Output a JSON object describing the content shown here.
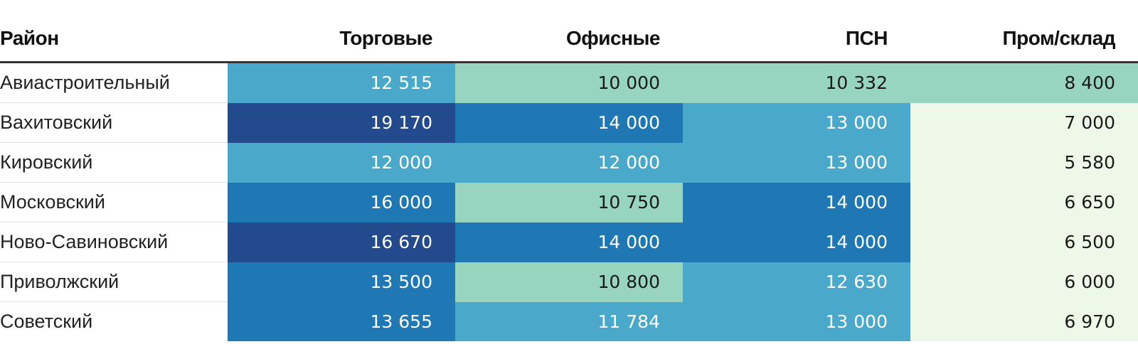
{
  "chart_data": {
    "type": "table",
    "columns": [
      "Район",
      "Торговые",
      "Офисные",
      "ПСН",
      "Пром/склад"
    ],
    "rows": [
      {
        "district": "Авиастроительный",
        "values": [
          12515,
          10000,
          10332,
          8400
        ],
        "labels": [
          "12 515",
          "10 000",
          "10 332",
          "8 400"
        ]
      },
      {
        "district": "Вахитовский",
        "values": [
          19170,
          14000,
          13000,
          7000
        ],
        "labels": [
          "19 170",
          "14 000",
          "13 000",
          "7 000"
        ]
      },
      {
        "district": "Кировский",
        "values": [
          12000,
          12000,
          13000,
          5580
        ],
        "labels": [
          "12 000",
          "12 000",
          "13 000",
          "5 580"
        ]
      },
      {
        "district": "Московский",
        "values": [
          16000,
          10750,
          14000,
          6650
        ],
        "labels": [
          "16 000",
          "10 750",
          "14 000",
          "6 650"
        ]
      },
      {
        "district": "Ново-Савиновский",
        "values": [
          16670,
          14000,
          14000,
          6500
        ],
        "labels": [
          "16 670",
          "14 000",
          "14 000",
          "6 500"
        ]
      },
      {
        "district": "Приволжский",
        "values": [
          13500,
          10800,
          12630,
          6000
        ],
        "labels": [
          "13 500",
          "10 800",
          "12 630",
          "6 000"
        ]
      },
      {
        "district": "Советский",
        "values": [
          13655,
          11784,
          13000,
          6970
        ],
        "labels": [
          "13 655",
          "11 784",
          "13 000",
          "6 970"
        ]
      }
    ],
    "color_bins": [
      {
        "min": 0,
        "max": 8000,
        "color": "#edf8e9",
        "text_color": "#1a1a1a"
      },
      {
        "min": 8000,
        "max": 11000,
        "color": "#97d5c0",
        "text_color": "#1a1a1a"
      },
      {
        "min": 11000,
        "max": 13500,
        "color": "#4aa8cb",
        "text_color": "#ffffff"
      },
      {
        "min": 13500,
        "max": 16500,
        "color": "#1f78b4",
        "text_color": "#ffffff"
      },
      {
        "min": 16500,
        "max": 100000,
        "color": "#234a8c",
        "text_color": "#ffffff"
      }
    ]
  }
}
